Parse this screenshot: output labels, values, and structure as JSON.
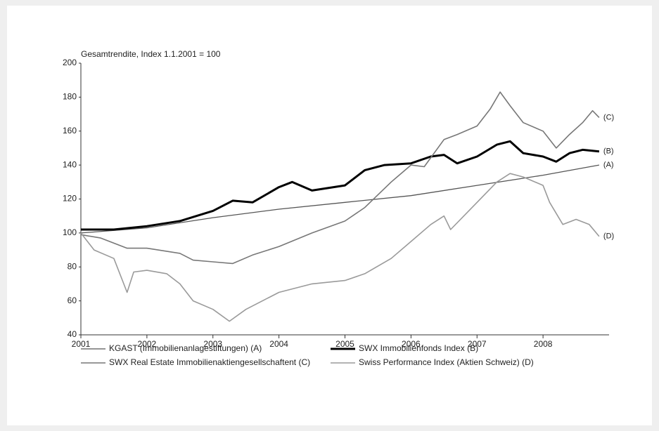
{
  "chart_data": {
    "type": "line",
    "title": "Gesamtrendite, Index 1.1.2001 = 100",
    "xlim": [
      2001,
      2009
    ],
    "xticks": [
      2001,
      2002,
      2003,
      2004,
      2005,
      2006,
      2007,
      2008
    ],
    "ylim": [
      40,
      200
    ],
    "yticks": [
      40,
      60,
      80,
      100,
      120,
      140,
      160,
      180,
      200
    ],
    "grid": false,
    "series": [
      {
        "name": "KGAST (Immobilienanlagestiftungen) (A)",
        "label": "(A)",
        "color": "#555555",
        "width": 1.3,
        "x": [
          2001,
          2002,
          2003,
          2004,
          2005,
          2006,
          2007,
          2008,
          2008.85
        ],
        "values": [
          100,
          103,
          109,
          114,
          118,
          122,
          128,
          134,
          140
        ]
      },
      {
        "name": "SWX Immobilienfonds Index (B)",
        "label": "(B)",
        "color": "#000000",
        "width": 3,
        "x": [
          2001,
          2001.5,
          2002,
          2002.5,
          2003,
          2003.3,
          2003.6,
          2004,
          2004.2,
          2004.5,
          2005,
          2005.3,
          2005.6,
          2006,
          2006.3,
          2006.5,
          2006.7,
          2007,
          2007.3,
          2007.5,
          2007.7,
          2008,
          2008.2,
          2008.4,
          2008.6,
          2008.85
        ],
        "values": [
          102,
          102,
          104,
          107,
          113,
          119,
          118,
          127,
          130,
          125,
          128,
          137,
          140,
          141,
          145,
          146,
          141,
          145,
          152,
          154,
          147,
          145,
          142,
          147,
          149,
          148
        ]
      },
      {
        "name": "SWX Real Estate Immobilienaktiengesellschaftent (C)",
        "label": "(C)",
        "color": "#777777",
        "width": 1.6,
        "x": [
          2001,
          2001.3,
          2001.7,
          2002,
          2002.5,
          2002.7,
          2003,
          2003.3,
          2003.6,
          2004,
          2004.5,
          2005,
          2005.3,
          2005.7,
          2006,
          2006.2,
          2006.5,
          2006.7,
          2007,
          2007.2,
          2007.35,
          2007.5,
          2007.7,
          2008,
          2008.2,
          2008.4,
          2008.6,
          2008.75,
          2008.85
        ],
        "values": [
          99,
          97,
          91,
          91,
          88,
          84,
          83,
          82,
          87,
          92,
          100,
          107,
          115,
          130,
          140,
          139,
          155,
          158,
          163,
          173,
          183,
          175,
          165,
          160,
          150,
          158,
          165,
          172,
          168
        ]
      },
      {
        "name": "Swiss Performance Index (Aktien Schweiz) (D)",
        "label": "(D)",
        "color": "#9a9a9a",
        "width": 1.6,
        "x": [
          2001,
          2001.2,
          2001.5,
          2001.7,
          2001.8,
          2002,
          2002.3,
          2002.5,
          2002.7,
          2003,
          2003.25,
          2003.5,
          2004,
          2004.5,
          2005,
          2005.3,
          2005.7,
          2006,
          2006.3,
          2006.5,
          2006.6,
          2007,
          2007.3,
          2007.5,
          2007.7,
          2008,
          2008.1,
          2008.3,
          2008.5,
          2008.7,
          2008.85
        ],
        "values": [
          100,
          90,
          85,
          65,
          77,
          78,
          76,
          70,
          60,
          55,
          48,
          55,
          65,
          70,
          72,
          76,
          85,
          95,
          105,
          110,
          102,
          118,
          130,
          135,
          133,
          128,
          118,
          105,
          108,
          105,
          98
        ]
      }
    ]
  }
}
